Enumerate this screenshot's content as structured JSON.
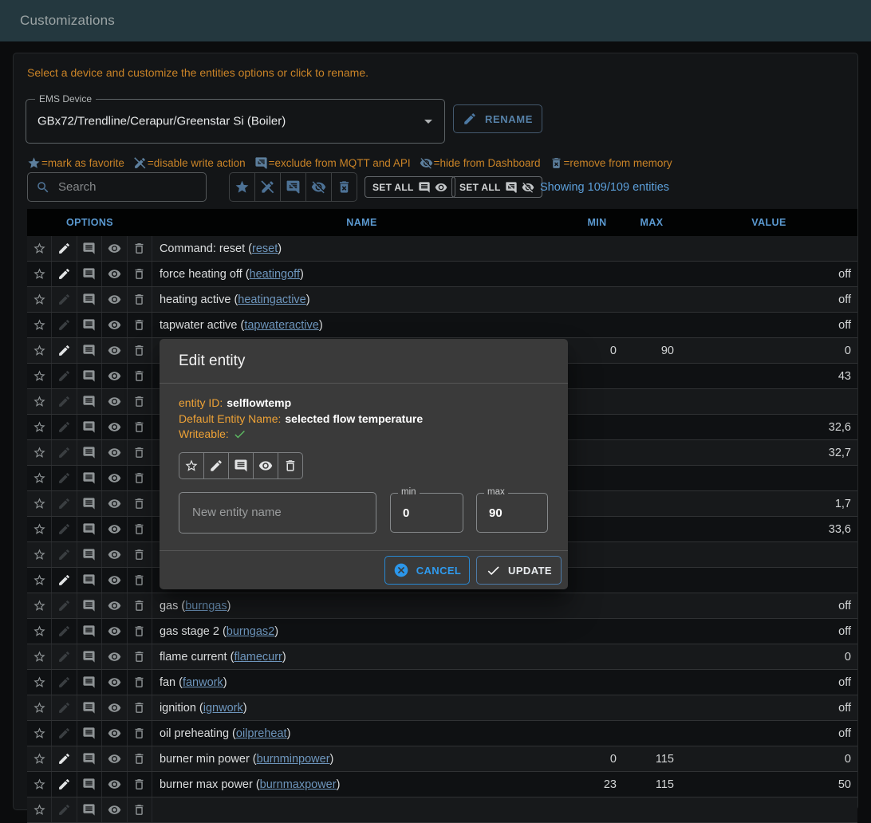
{
  "appbar": {
    "title": "Customizations"
  },
  "intro": "Select a device and customize the entities options or click to rename.",
  "device_select": {
    "label": "EMS Device",
    "value": "GBx72/Trendline/Cerapur/Greenstar Si (Boiler)"
  },
  "rename_button": "RENAME",
  "legend": {
    "items": [
      {
        "icon": "star",
        "text": "=mark as favorite"
      },
      {
        "icon": "edit-off",
        "text": "=disable write action"
      },
      {
        "icon": "comment-off",
        "text": "=exclude from MQTT and API"
      },
      {
        "icon": "eye-off",
        "text": "=hide from Dashboard"
      },
      {
        "icon": "delete-forever",
        "text": "=remove from memory"
      }
    ]
  },
  "toolbar": {
    "search_placeholder": "Search",
    "set_all_mqtt_visible_label": "SET ALL",
    "set_all_hidden_label": "SET ALL",
    "showing": "Showing 109/109 entities"
  },
  "table": {
    "headers": {
      "options": "OPTIONS",
      "name": "NAME",
      "min": "MIN",
      "max": "MAX",
      "value": "VALUE"
    },
    "rows": [
      {
        "name": "Command: reset",
        "id": "reset",
        "min": "",
        "max": "",
        "value": "",
        "writable": true
      },
      {
        "name": "force heating off",
        "id": "heatingoff",
        "min": "",
        "max": "",
        "value": "off",
        "writable": true
      },
      {
        "name": "heating active",
        "id": "heatingactive",
        "min": "",
        "max": "",
        "value": "off",
        "writable": false
      },
      {
        "name": "tapwater active",
        "id": "tapwateractive",
        "min": "",
        "max": "",
        "value": "off",
        "writable": false
      },
      {
        "name": "",
        "id": "",
        "min": "0",
        "max": "90",
        "value": "0",
        "writable": true
      },
      {
        "name": "",
        "id": "",
        "min": "",
        "max": "",
        "value": "43",
        "writable": false
      },
      {
        "name": "",
        "id": "",
        "min": "",
        "max": "",
        "value": "",
        "writable": false
      },
      {
        "name": "",
        "id": "",
        "min": "",
        "max": "",
        "value": "32,6",
        "writable": false
      },
      {
        "name": "",
        "id": "",
        "min": "",
        "max": "",
        "value": "32,7",
        "writable": false
      },
      {
        "name": "",
        "id": "",
        "min": "",
        "max": "",
        "value": "",
        "writable": false
      },
      {
        "name": "",
        "id": "",
        "min": "",
        "max": "",
        "value": "1,7",
        "writable": false
      },
      {
        "name": "",
        "id": "",
        "min": "",
        "max": "",
        "value": "33,6",
        "writable": false
      },
      {
        "name": "",
        "id": "",
        "min": "",
        "max": "",
        "value": "",
        "writable": false
      },
      {
        "name": "",
        "id": "",
        "min": "",
        "max": "",
        "value": "",
        "writable": true
      },
      {
        "name": "gas",
        "id": "burngas",
        "min": "",
        "max": "",
        "value": "off",
        "writable": false
      },
      {
        "name": "gas stage 2",
        "id": "burngas2",
        "min": "",
        "max": "",
        "value": "off",
        "writable": false
      },
      {
        "name": "flame current",
        "id": "flamecurr",
        "min": "",
        "max": "",
        "value": "0",
        "writable": false
      },
      {
        "name": "fan",
        "id": "fanwork",
        "min": "",
        "max": "",
        "value": "off",
        "writable": false
      },
      {
        "name": "ignition",
        "id": "ignwork",
        "min": "",
        "max": "",
        "value": "off",
        "writable": false
      },
      {
        "name": "oil preheating",
        "id": "oilpreheat",
        "min": "",
        "max": "",
        "value": "off",
        "writable": false
      },
      {
        "name": "burner min power",
        "id": "burnminpower",
        "min": "0",
        "max": "115",
        "value": "0",
        "writable": true
      },
      {
        "name": "burner max power",
        "id": "burnmaxpower",
        "min": "23",
        "max": "115",
        "value": "50",
        "writable": true
      },
      {
        "name": "",
        "id": "",
        "min": "",
        "max": "",
        "value": "",
        "writable": false
      }
    ]
  },
  "dialog": {
    "title": "Edit entity",
    "entity_id_label": "entity ID:",
    "entity_id": "selflowtemp",
    "default_name_label": "Default Entity Name:",
    "default_name": "selected flow temperature",
    "writeable_label": "Writeable:",
    "name_placeholder": "New entity name",
    "min_label": "min",
    "min_value": "0",
    "max_label": "max",
    "max_value": "90",
    "cancel_label": "CANCEL",
    "update_label": "UPDATE"
  },
  "colors": {
    "appbar_bg": "#24383f",
    "orange_text": "#c98327",
    "blue_accent": "#2196f3",
    "header_blue": "#5b99d0",
    "link_blue": "#6e96bd",
    "green_check": "#5dbb63"
  }
}
